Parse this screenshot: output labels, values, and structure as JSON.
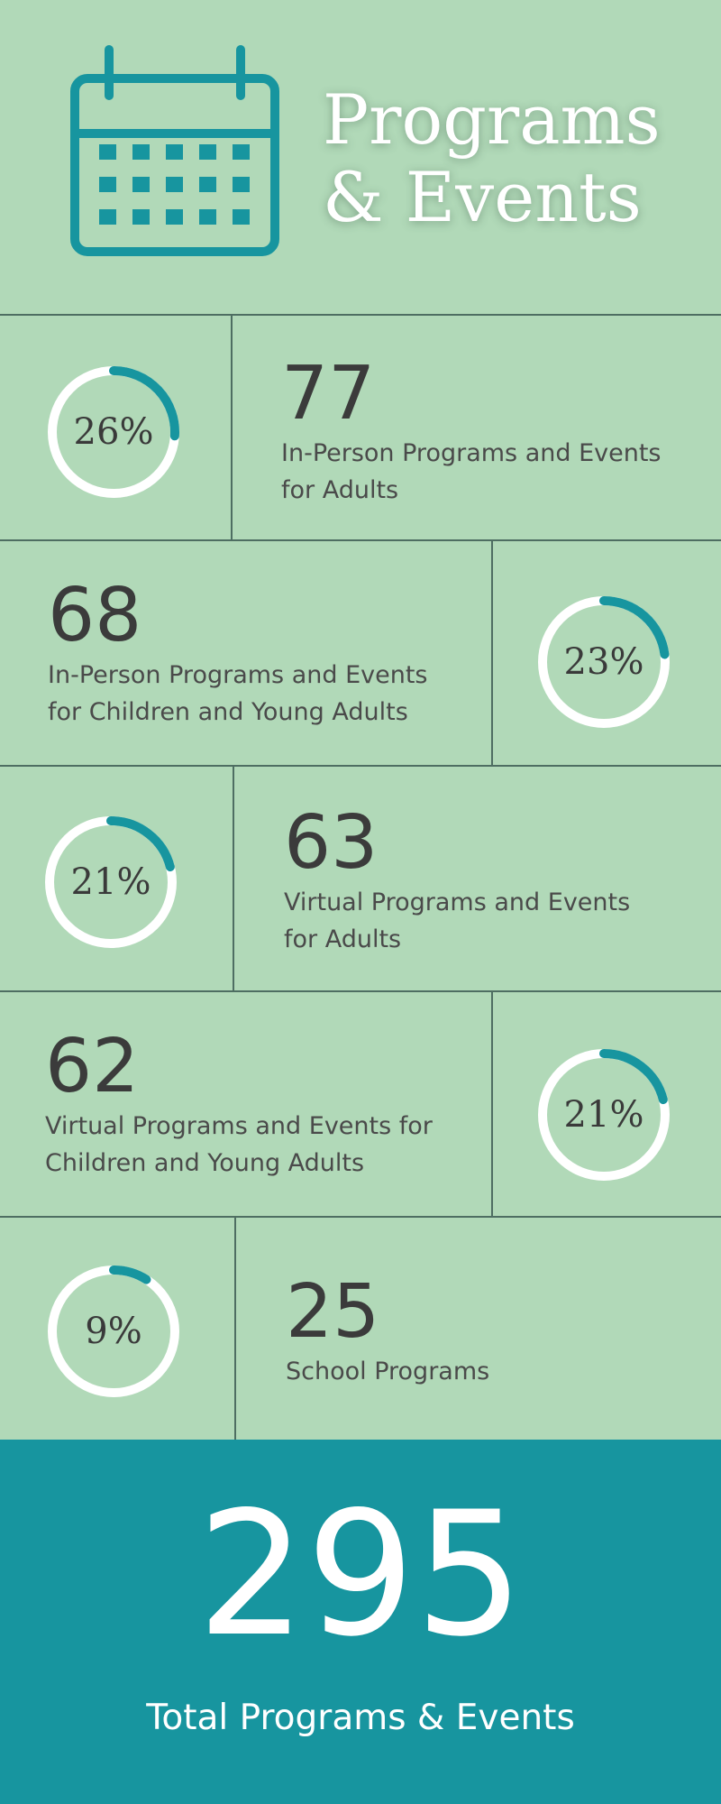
{
  "header": {
    "title_line1": "Programs",
    "title_line2": "& Events",
    "icon": "calendar-icon"
  },
  "colors": {
    "background": "#b1d9b8",
    "accent": "#17959f",
    "ring_track": "#ffffff",
    "text_dark": "#3b3b3b"
  },
  "chart_data": {
    "type": "table",
    "title": "Programs & Events",
    "rows": [
      {
        "percent_label": "26%",
        "percent": 26,
        "value": "77",
        "label_lines": [
          "In-Person Programs and Events",
          "for Adults"
        ]
      },
      {
        "percent_label": "23%",
        "percent": 23,
        "value": "68",
        "label_lines": [
          "In-Person Programs and Events",
          "for Children and Young Adults"
        ]
      },
      {
        "percent_label": "21%",
        "percent": 21,
        "value": "63",
        "label_lines": [
          "Virtual Programs and Events",
          "for Adults"
        ]
      },
      {
        "percent_label": "21%",
        "percent": 21,
        "value": "62",
        "label_lines": [
          "Virtual Programs and Events for",
          "Children and Young Adults"
        ]
      },
      {
        "percent_label": "9%",
        "percent": 9,
        "value": "25",
        "label_lines": [
          "School Programs"
        ]
      }
    ],
    "total": {
      "value": "295",
      "label": "Total Programs & Events"
    }
  }
}
